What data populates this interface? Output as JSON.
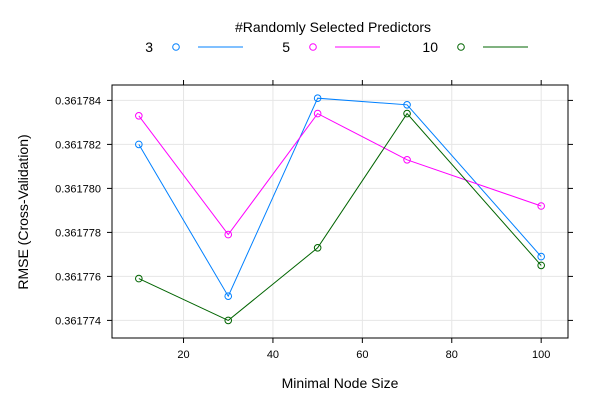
{
  "chart_data": {
    "type": "line",
    "title": "",
    "legend_title": "#Randomly Selected Predictors",
    "legend_position": "top",
    "xlabel": "Minimal Node Size",
    "ylabel": "RMSE (Cross-Validation)",
    "x": [
      10,
      30,
      50,
      70,
      100
    ],
    "xlim": [
      4,
      106
    ],
    "ylim": [
      0.3617732,
      0.3617847
    ],
    "xticks": [
      20,
      40,
      60,
      80,
      100
    ],
    "yticks": [
      0.361774,
      0.361776,
      0.361778,
      0.36178,
      0.361782,
      0.361784
    ],
    "ytick_labels": [
      "0.361774",
      "0.361776",
      "0.361778",
      "0.361780",
      "0.361782",
      "0.361784"
    ],
    "grid": true,
    "series": [
      {
        "name": "3",
        "color": "#0080ff",
        "values": [
          0.361782,
          0.3617751,
          0.3617841,
          0.3617838,
          0.3617769
        ]
      },
      {
        "name": "5",
        "color": "#ff00ff",
        "values": [
          0.3617833,
          0.3617779,
          0.3617834,
          0.3617813,
          0.3617792
        ]
      },
      {
        "name": "10",
        "color": "#006400",
        "values": [
          0.3617759,
          0.361774,
          0.3617773,
          0.3617834,
          0.3617765
        ]
      }
    ]
  }
}
